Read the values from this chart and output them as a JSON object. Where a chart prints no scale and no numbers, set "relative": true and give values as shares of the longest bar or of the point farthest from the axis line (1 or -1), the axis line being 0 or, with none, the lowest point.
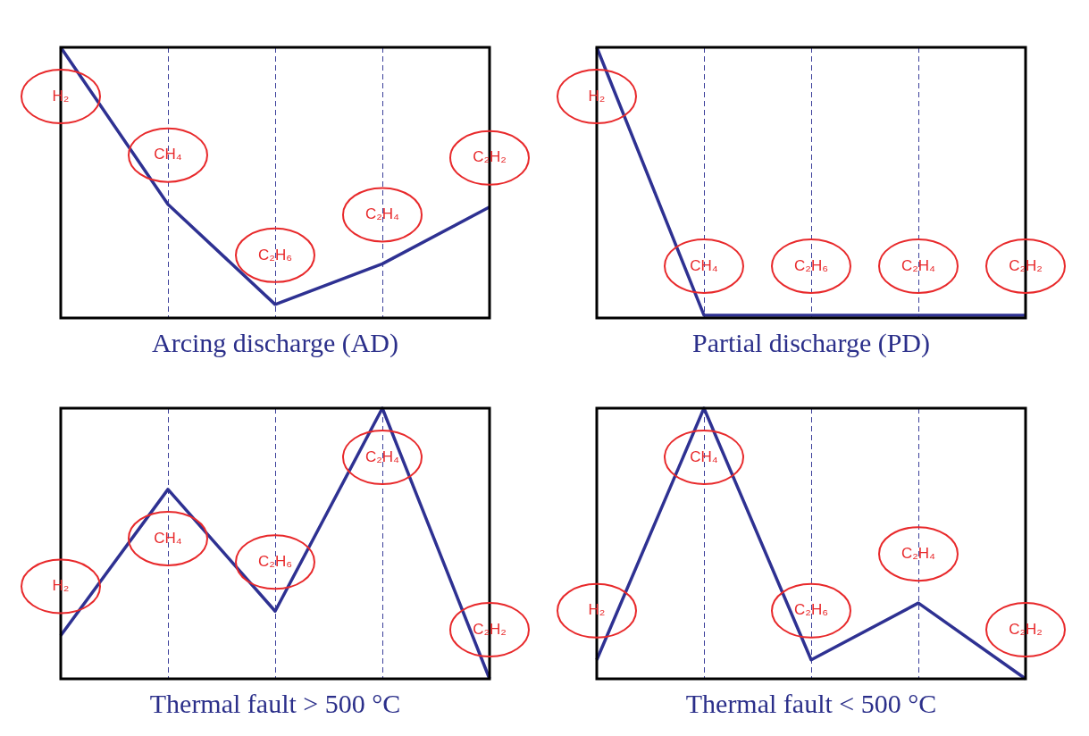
{
  "chart_data": [
    {
      "type": "line",
      "title": "Arcing discharge (AD)",
      "categories": [
        "H₂",
        "CH₄",
        "C₂H₆",
        "C₂H₄",
        "C₂H₂"
      ],
      "relative": true,
      "grid": "x",
      "marker": "none",
      "line_style": "solid",
      "series": [
        {
          "color": "#2e3192",
          "values": [
            1,
            0.42,
            0.05,
            0.2,
            0.41
          ]
        }
      ]
    },
    {
      "type": "line",
      "title": "Partial discharge (PD)",
      "categories": [
        "H₂",
        "CH₄",
        "C₂H₆",
        "C₂H₄",
        "C₂H₂"
      ],
      "relative": true,
      "grid": "x",
      "marker": "none",
      "line_style": "solid",
      "series": [
        {
          "color": "#2e3192",
          "values": [
            1,
            0.01,
            0.01,
            0.01,
            0.01
          ]
        }
      ]
    },
    {
      "type": "line",
      "title": "Thermal fault > 500 °C",
      "categories": [
        "H₂",
        "CH₄",
        "C₂H₆",
        "C₂H₄",
        "C₂H₂"
      ],
      "relative": true,
      "grid": "x",
      "marker": "none",
      "line_style": "solid",
      "series": [
        {
          "color": "#2e3192",
          "values": [
            0.16,
            0.7,
            0.25,
            1,
            0
          ]
        }
      ]
    },
    {
      "type": "line",
      "title": "Thermal fault < 500 °C",
      "categories": [
        "H₂",
        "CH₄",
        "C₂H₆",
        "C₂H₄",
        "C₂H₂"
      ],
      "relative": true,
      "grid": "x",
      "marker": "none",
      "line_style": "solid",
      "series": [
        {
          "color": "#2e3192",
          "values": [
            0.07,
            1,
            0.07,
            0.28,
            0
          ]
        }
      ]
    }
  ]
}
